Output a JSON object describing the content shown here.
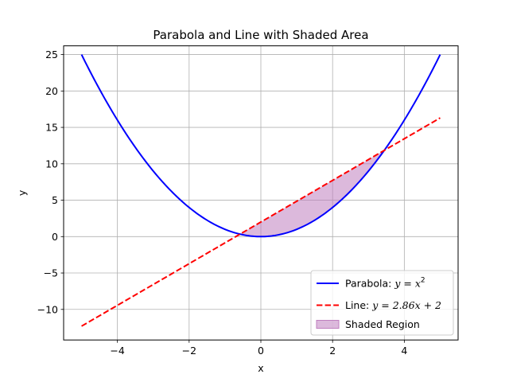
{
  "chart_data": {
    "type": "line",
    "title": "Parabola and Line with Shaded Area",
    "xlabel": "x",
    "ylabel": "y",
    "xlim": [
      -5.5,
      5.5
    ],
    "ylim": [
      -14.2,
      26.2
    ],
    "xticks": [
      -4,
      -2,
      0,
      2,
      4
    ],
    "xtick_labels": [
      "−4",
      "−2",
      "0",
      "2",
      "4"
    ],
    "yticks": [
      -10,
      -5,
      0,
      5,
      10,
      15,
      20,
      25
    ],
    "ytick_labels": [
      "−10",
      "−5",
      "0",
      "5",
      "10",
      "15",
      "20",
      "25"
    ],
    "grid": true,
    "legend_position": "lower-right",
    "series": [
      {
        "name": "Parabola: y = x²",
        "legend_prefix": "Parabola: ",
        "legend_math": "y = x",
        "legend_sup": "2",
        "kind": "line",
        "color": "#0000ff",
        "dash": "solid",
        "function": "x^2",
        "x_range": [
          -5,
          5
        ]
      },
      {
        "name": "Line: y = 2.86x + 2",
        "legend_prefix": "Line: ",
        "legend_math": "y = 2.86x + 2",
        "legend_sup": "",
        "kind": "line",
        "color": "#ff0000",
        "dash": "dashed",
        "slope": 2.86,
        "intercept": 2,
        "x_range": [
          -5,
          5
        ]
      },
      {
        "name": "Shaded Region",
        "legend_prefix": "Shaded Region",
        "legend_math": "",
        "legend_sup": "",
        "kind": "fill",
        "color": "#bf7fbf",
        "between": [
          "x^2",
          "2.86x + 2"
        ],
        "x_range": [
          -0.605,
          3.465
        ]
      }
    ]
  }
}
